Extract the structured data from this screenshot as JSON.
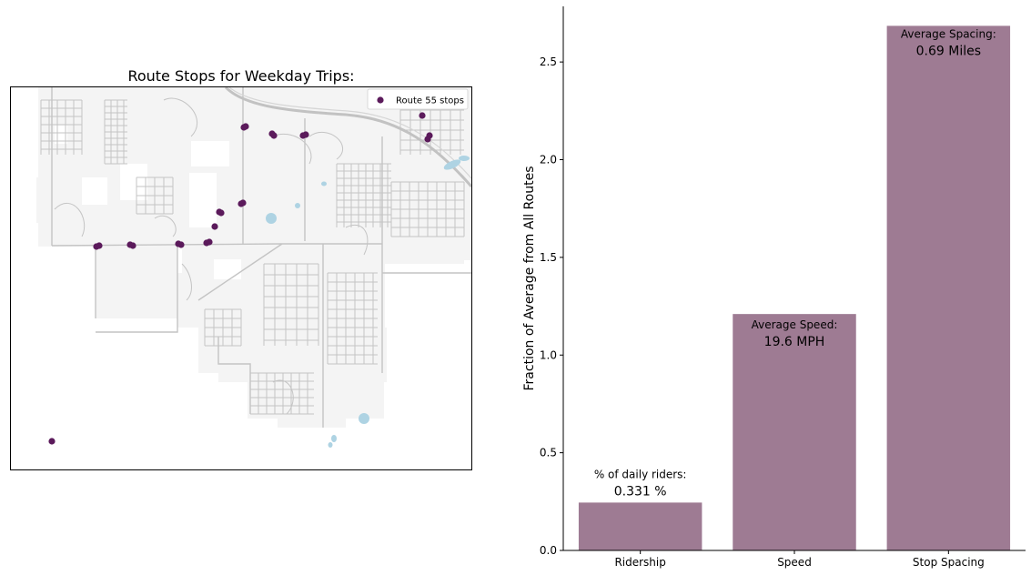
{
  "map": {
    "title": "Route Stops for Weekday Trips:",
    "legend_label": "Route 55 stops",
    "colors": {
      "stop": "#5b1a5b",
      "roads": "#bdbdbd",
      "land": "#f3f3f3",
      "water": "#aed3e3",
      "frame": "#000000"
    },
    "stop_count": 22
  },
  "chart_data": {
    "type": "bar",
    "categories": [
      "Ridership",
      "Speed",
      "Stop Spacing"
    ],
    "values": [
      0.245,
      1.21,
      2.685
    ],
    "ylabel": "Fraction of Average from All Routes",
    "xlabel": "",
    "ylim": [
      0,
      2.78
    ],
    "yticks": [
      "0.0",
      "0.5",
      "1.0",
      "1.5",
      "2.0",
      "2.5"
    ],
    "ytick_values": [
      0,
      0.5,
      1.0,
      1.5,
      2.0,
      2.5
    ],
    "bar_color": "#9e7b93",
    "grid": false,
    "annotations": [
      {
        "title": "% of daily riders:",
        "value": "0.331 %"
      },
      {
        "title": "Average Speed:",
        "value": "19.6 MPH"
      },
      {
        "title": "Average Spacing:",
        "value": "0.69 Miles"
      }
    ]
  }
}
